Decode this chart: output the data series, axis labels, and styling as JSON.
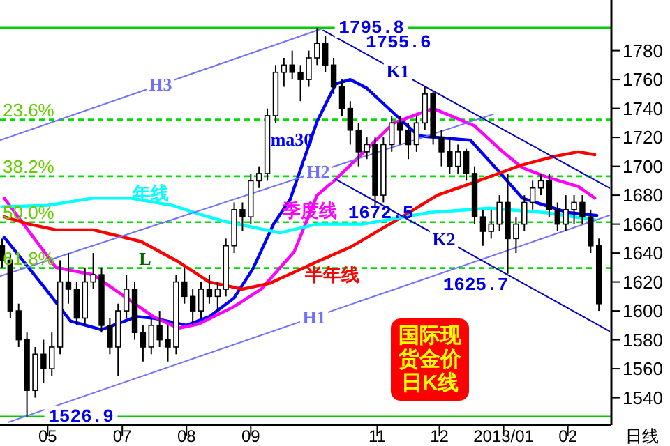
{
  "chart_data": {
    "type": "candlestick",
    "xlabel": "日线",
    "x": [
      "2012-05-04",
      "2012-05-08",
      "2012-05-12",
      "2012-05-16",
      "2012-05-20",
      "2012-05-24",
      "2012-05-28",
      "2012-06-01",
      "2012-06-05",
      "2012-06-09",
      "2012-06-13",
      "2012-06-17",
      "2012-06-21",
      "2012-06-25",
      "2012-06-29",
      "2012-07-03",
      "2012-07-07",
      "2012-07-11",
      "2012-07-15",
      "2012-07-19",
      "2012-07-23",
      "2012-07-27",
      "2012-07-31",
      "2012-08-04",
      "2012-08-08",
      "2012-08-12",
      "2012-08-16",
      "2012-08-20",
      "2012-08-24",
      "2012-08-28",
      "2012-09-01",
      "2012-09-05",
      "2012-09-09",
      "2012-09-13",
      "2012-09-17",
      "2012-09-21",
      "2012-09-25",
      "2012-09-29",
      "2012-10-03",
      "2012-10-07",
      "2012-10-11",
      "2012-10-15",
      "2012-10-19",
      "2012-10-23",
      "2012-10-27",
      "2012-10-31",
      "2012-11-04",
      "2012-11-08",
      "2012-11-12",
      "2012-11-16",
      "2012-11-20",
      "2012-11-24",
      "2012-11-28",
      "2012-12-02",
      "2012-12-06",
      "2012-12-10",
      "2012-12-14",
      "2012-12-18",
      "2012-12-22",
      "2012-12-26",
      "2012-12-30",
      "2013-01-03",
      "2013-01-07",
      "2013-01-11",
      "2013-01-15",
      "2013-01-19",
      "2013-01-23",
      "2013-01-27",
      "2013-01-31",
      "2013-02-04",
      "2013-02-08",
      "2013-02-12",
      "2013-02-16"
    ],
    "ohlc": [
      [
        1645,
        1650,
        1630,
        1635
      ],
      [
        1635,
        1640,
        1595,
        1600
      ],
      [
        1600,
        1605,
        1575,
        1580
      ],
      [
        1580,
        1585,
        1526.9,
        1545
      ],
      [
        1545,
        1575,
        1540,
        1570
      ],
      [
        1570,
        1580,
        1550,
        1560
      ],
      [
        1560,
        1585,
        1555,
        1575
      ],
      [
        1575,
        1635,
        1570,
        1620
      ],
      [
        1620,
        1640,
        1605,
        1615
      ],
      [
        1615,
        1620,
        1590,
        1595
      ],
      [
        1595,
        1630,
        1590,
        1620
      ],
      [
        1620,
        1640,
        1615,
        1625
      ],
      [
        1625,
        1630,
        1585,
        1590
      ],
      [
        1590,
        1595,
        1570,
        1575
      ],
      [
        1575,
        1605,
        1555,
        1600
      ],
      [
        1600,
        1625,
        1595,
        1615
      ],
      [
        1615,
        1620,
        1580,
        1585
      ],
      [
        1585,
        1590,
        1565,
        1575
      ],
      [
        1575,
        1595,
        1570,
        1590
      ],
      [
        1590,
        1600,
        1575,
        1580
      ],
      [
        1580,
        1590,
        1565,
        1575
      ],
      [
        1575,
        1625,
        1570,
        1620
      ],
      [
        1620,
        1630,
        1605,
        1610
      ],
      [
        1610,
        1615,
        1590,
        1600
      ],
      [
        1600,
        1620,
        1595,
        1615
      ],
      [
        1615,
        1625,
        1605,
        1610
      ],
      [
        1610,
        1620,
        1600,
        1615
      ],
      [
        1615,
        1650,
        1610,
        1645
      ],
      [
        1645,
        1675,
        1640,
        1670
      ],
      [
        1670,
        1675,
        1655,
        1665
      ],
      [
        1665,
        1695,
        1660,
        1690
      ],
      [
        1690,
        1700,
        1685,
        1695
      ],
      [
        1695,
        1740,
        1690,
        1735
      ],
      [
        1735,
        1770,
        1730,
        1765
      ],
      [
        1765,
        1775,
        1755,
        1770
      ],
      [
        1770,
        1780,
        1760,
        1765
      ],
      [
        1765,
        1770,
        1745,
        1760
      ],
      [
        1760,
        1780,
        1755,
        1775
      ],
      [
        1775,
        1795.8,
        1770,
        1785
      ],
      [
        1785,
        1790,
        1765,
        1770
      ],
      [
        1770,
        1775,
        1750,
        1755
      ],
      [
        1755,
        1760,
        1735,
        1740
      ],
      [
        1740,
        1745,
        1715,
        1725
      ],
      [
        1725,
        1730,
        1700,
        1710
      ],
      [
        1710,
        1720,
        1705,
        1715
      ],
      [
        1715,
        1720,
        1672.5,
        1680
      ],
      [
        1680,
        1720,
        1675,
        1715
      ],
      [
        1715,
        1735,
        1710,
        1730
      ],
      [
        1730,
        1735,
        1715,
        1725
      ],
      [
        1725,
        1730,
        1705,
        1715
      ],
      [
        1715,
        1735,
        1710,
        1730
      ],
      [
        1730,
        1755.6,
        1725,
        1750
      ],
      [
        1750,
        1752,
        1715,
        1720
      ],
      [
        1720,
        1725,
        1700,
        1710
      ],
      [
        1710,
        1720,
        1695,
        1700
      ],
      [
        1700,
        1715,
        1695,
        1710
      ],
      [
        1710,
        1712,
        1690,
        1695
      ],
      [
        1695,
        1700,
        1660,
        1665
      ],
      [
        1665,
        1670,
        1645,
        1655
      ],
      [
        1655,
        1670,
        1650,
        1660
      ],
      [
        1660,
        1680,
        1655,
        1675
      ],
      [
        1675,
        1695,
        1625.7,
        1650
      ],
      [
        1650,
        1665,
        1640,
        1660
      ],
      [
        1660,
        1680,
        1655,
        1675
      ],
      [
        1675,
        1690,
        1670,
        1685
      ],
      [
        1685,
        1695,
        1680,
        1690
      ],
      [
        1690,
        1695,
        1665,
        1670
      ],
      [
        1670,
        1675,
        1655,
        1660
      ],
      [
        1660,
        1680,
        1655,
        1670
      ],
      [
        1670,
        1680,
        1660,
        1675
      ],
      [
        1675,
        1680,
        1660,
        1665
      ],
      [
        1665,
        1670,
        1640,
        1645
      ],
      [
        1645,
        1650,
        1600,
        1605
      ]
    ],
    "series": [
      {
        "type": "line",
        "name": "ma30",
        "color": "#0000ff",
        "x": [
          "2012-05-05",
          "2012-05-24",
          "2012-06-06",
          "2012-06-21",
          "2012-07-08",
          "2012-07-16",
          "2012-08-01",
          "2012-08-12",
          "2012-08-24",
          "2012-09-02",
          "2012-09-12",
          "2012-09-20",
          "2012-10-03",
          "2012-10-12",
          "2012-10-19",
          "2012-10-27",
          "2012-11-08",
          "2012-11-21",
          "2012-12-16",
          "2012-12-30",
          "2013-01-10",
          "2013-01-21",
          "2013-02-01",
          "2013-02-15"
        ],
        "values": [
          1651,
          1617,
          1593,
          1587,
          1596,
          1595,
          1590,
          1596,
          1609,
          1629,
          1660,
          1677,
          1731,
          1757,
          1760,
          1754,
          1738,
          1721,
          1718,
          1696,
          1678,
          1673,
          1668,
          1666
        ]
      },
      {
        "type": "line",
        "name": "季度线",
        "color": "#ff00ff",
        "x": [
          "2012-05-05",
          "2012-05-30",
          "2012-06-17",
          "2012-07-03",
          "2012-07-16",
          "2012-07-28",
          "2012-08-07",
          "2012-08-24",
          "2012-09-06",
          "2012-09-22",
          "2012-10-03",
          "2012-10-12",
          "2012-10-25",
          "2012-11-09",
          "2012-11-28",
          "2012-12-18",
          "2012-12-30",
          "2013-01-10",
          "2013-01-23",
          "2013-02-06",
          "2013-02-14"
        ],
        "values": [
          1678,
          1630,
          1625,
          1609,
          1596,
          1588,
          1591,
          1603,
          1615,
          1641,
          1680,
          1691,
          1709,
          1730,
          1740,
          1728,
          1712,
          1699,
          1692,
          1686,
          1678
        ]
      },
      {
        "type": "line",
        "name": "半年线",
        "color": "#ff0000",
        "x": [
          "2012-05-05",
          "2012-05-17",
          "2012-05-30",
          "2012-06-17",
          "2012-07-10",
          "2012-07-28",
          "2012-08-12",
          "2012-08-28",
          "2012-09-10",
          "2012-10-03",
          "2012-10-19",
          "2012-11-13",
          "2012-11-30",
          "2012-12-18",
          "2013-01-10",
          "2013-01-26",
          "2013-02-06",
          "2013-02-14"
        ],
        "values": [
          1665,
          1660,
          1656,
          1656,
          1648,
          1634,
          1620,
          1615,
          1619,
          1634,
          1644,
          1665,
          1680,
          1689,
          1701,
          1707,
          1710,
          1708
        ]
      },
      {
        "type": "line",
        "name": "年线",
        "color": "#00ffff",
        "x": [
          "2012-05-04",
          "2012-05-26",
          "2012-06-17",
          "2012-07-05",
          "2012-07-25",
          "2012-08-07",
          "2012-08-19",
          "2012-09-15",
          "2012-10-03",
          "2012-10-25",
          "2012-11-26",
          "2012-12-25",
          "2013-01-21",
          "2013-02-14"
        ],
        "values": [
          1672,
          1673,
          1678,
          1678,
          1673,
          1667,
          1662,
          1654,
          1660,
          1660,
          1668,
          1671,
          1668,
          1663
        ]
      },
      {
        "type": "line",
        "name": "H1",
        "color": "#7070ff",
        "x": [
          "2012-05-07",
          "2013-02-21"
        ],
        "values": [
          1523,
          1666
        ]
      },
      {
        "type": "line",
        "name": "H2",
        "color": "#7070ff",
        "x": [
          "2012-05-03",
          "2012-12-27"
        ],
        "values": [
          1624,
          1736
        ]
      },
      {
        "type": "line",
        "name": "H3",
        "color": "#7070ff",
        "x": [
          "2012-05-03",
          "2012-10-05"
        ],
        "values": [
          1718,
          1795
        ]
      },
      {
        "type": "line",
        "name": "K1",
        "color": "#0000cc",
        "x": [
          "2012-10-06",
          "2013-02-21"
        ],
        "values": [
          1794,
          1685
        ]
      },
      {
        "type": "line",
        "name": "K2",
        "color": "#0000cc",
        "x": [
          "2012-10-12",
          "2013-02-21"
        ],
        "values": [
          1691,
          1586
        ]
      }
    ],
    "ref_lines": [
      {
        "axis": "y",
        "value": 1732.3,
        "color": "#00dd00",
        "line_style": "dashed"
      },
      {
        "axis": "y",
        "value": 1693.1,
        "color": "#00dd00",
        "line_style": "dashed"
      },
      {
        "axis": "y",
        "value": 1661.4,
        "color": "#00dd00",
        "line_style": "dashed"
      },
      {
        "axis": "y",
        "value": 1629.6,
        "color": "#00dd00",
        "line_style": "dashed"
      },
      {
        "axis": "y",
        "value": 1795.8,
        "label": "1795.8",
        "color": "#00cc00",
        "line_style": "solid"
      },
      {
        "axis": "y",
        "value": 1526.9,
        "label": "1526.9",
        "color": "#00cc00",
        "line_style": "solid"
      }
    ],
    "annotations": [
      {
        "text": "1755.6",
        "x": "2012-11-24",
        "y": 1755.6
      },
      {
        "text": "1672.5",
        "x": "2012-10-31",
        "y": 1672.5
      },
      {
        "text": "1625.7",
        "x": "2013-01-03",
        "y": 1625.7
      },
      {
        "text": "L",
        "x": "2012-07-12",
        "y": 1629.6
      },
      "国际现货金价日K线",
      {
        "text": "23.6%",
        "x": "2012-05-03",
        "y": 1732.3
      },
      {
        "text": "38.2%",
        "x": "2012-05-03",
        "y": 1693.1
      },
      {
        "text": "50.0%",
        "x": "2012-05-03",
        "y": 1661.4
      },
      {
        "text": "61.8%",
        "x": "2012-05-03",
        "y": 1629.6
      }
    ],
    "xlim": [
      "2012-05-03",
      "2013-02-22"
    ],
    "ylim": [
      1521,
      1815
    ],
    "xticks": [
      {
        "value": "2012-05-26",
        "label": "05"
      },
      {
        "value": "2012-07-01",
        "label": "07"
      },
      {
        "value": "2012-08-01",
        "label": "08"
      },
      {
        "value": "2012-09-01",
        "label": "09"
      },
      {
        "value": "2012-11-01",
        "label": "11"
      },
      {
        "value": "2012-12-01",
        "label": "12"
      },
      {
        "value": "2013-01-01",
        "label": "2013/01"
      },
      {
        "value": "2013-02-01",
        "label": "02"
      }
    ],
    "yticks": [
      1540,
      1560,
      1580,
      1600,
      1620,
      1640,
      1660,
      1680,
      1700,
      1720,
      1740,
      1760,
      1780
    ],
    "grid": false
  }
}
